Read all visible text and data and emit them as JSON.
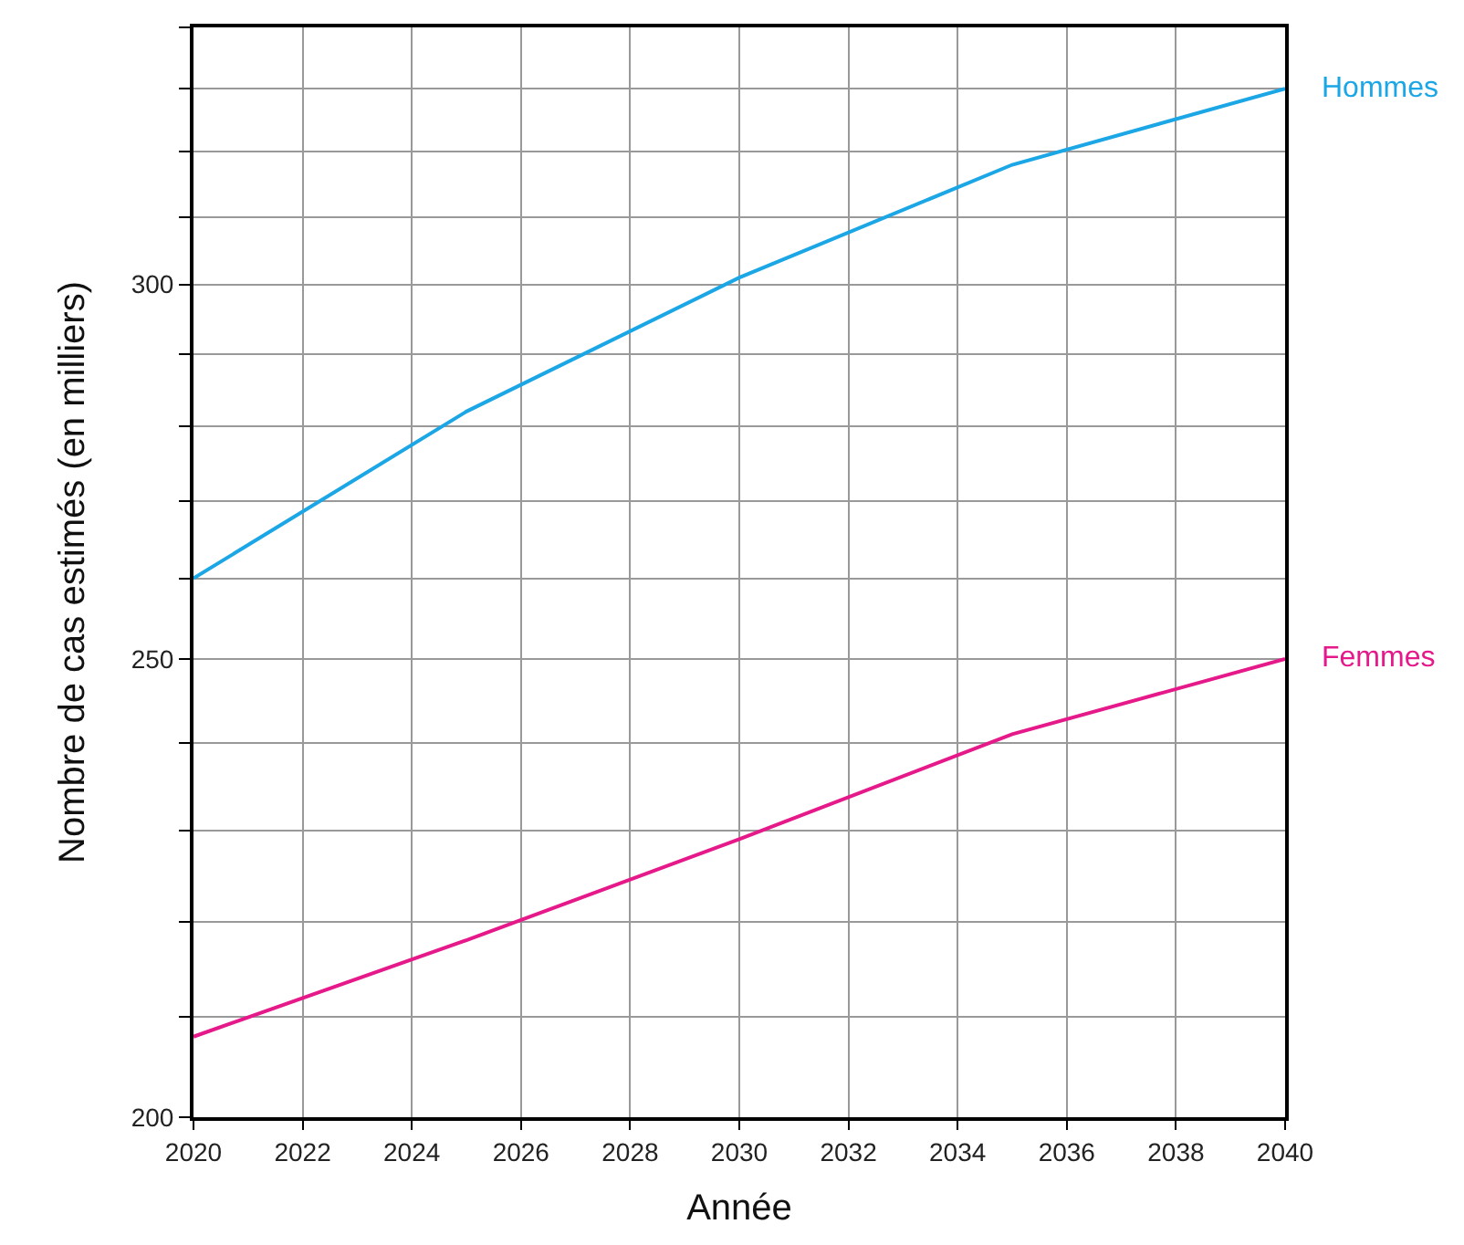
{
  "chart_data": {
    "type": "line",
    "xlabel": "Année",
    "ylabel": "Nombre de cas estimés (en milliers)",
    "x": [
      2020,
      2025,
      2030,
      2035,
      2040
    ],
    "series": [
      {
        "name": "Hommes",
        "color": "#1ba6e6",
        "values": [
          260,
          282,
          301,
          318,
          330
        ]
      },
      {
        "name": "Femmes",
        "color": "#e6198a",
        "values": [
          208,
          218,
          229,
          241,
          250
        ]
      }
    ],
    "log": "y",
    "xlim": [
      2020,
      2040
    ],
    "xticks": [
      2020,
      2022,
      2024,
      2026,
      2028,
      2030,
      2032,
      2034,
      2036,
      2038,
      2040
    ],
    "ylim": [
      200,
      340
    ],
    "yticks": [
      200,
      {
        "value": 210,
        "label": null
      },
      {
        "value": 220,
        "label": null
      },
      {
        "value": 230,
        "label": null
      },
      {
        "value": 240,
        "label": null
      },
      250,
      {
        "value": 260,
        "label": null
      },
      {
        "value": 270,
        "label": null
      },
      {
        "value": 280,
        "label": null
      },
      {
        "value": 290,
        "label": null
      },
      300,
      {
        "value": 310,
        "label": null
      },
      {
        "value": 320,
        "label": null
      },
      {
        "value": 330,
        "label": null
      },
      {
        "value": 340,
        "label": null
      }
    ],
    "grid": true,
    "legend": false,
    "marker": "none",
    "line_style": "solid"
  }
}
